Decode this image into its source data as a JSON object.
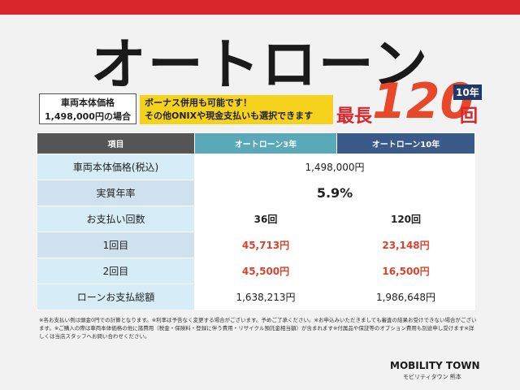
{
  "header": {
    "title": "オートローン"
  },
  "price_box": {
    "line1": "車両本体価格",
    "line2": "1,498,000円の場合"
  },
  "banner": {
    "line1": "ボーナス併用も可能です！",
    "line2": "その他ONIXや現金支払いも選択できます"
  },
  "max_term": {
    "prefix": "最長",
    "number": "120",
    "unit": "回",
    "badge": "10年"
  },
  "table": {
    "columns": [
      "項目",
      "オートローン3年",
      "オートローン10年"
    ],
    "rows": [
      [
        "車両本体価格(税込)",
        "1,498,000円"
      ],
      [
        "実質年率",
        "5.9%"
      ],
      [
        "お支払い回数",
        "36回",
        "120回"
      ],
      [
        "1回目",
        "45,713円",
        "23,148円"
      ],
      [
        "2回目",
        "45,500円",
        "16,500円"
      ],
      [
        "ローンお支払総額",
        "1,638,213円",
        "1,986,648円"
      ]
    ]
  },
  "footnote": "※各お支払い例は頭金0円での計算となります。※利率は予告なく変更する場合がございます。予めご了承ください。※お申込みいただきましても審査の結果お受けできない場合がございます。※ご購入の際は車両本体価格の他に諸費用（税金・保険料・登録に伴う費用・リサイクル預託金相当額）が含まれます※付属品や保証等のオプション費用も別途申し受けます※詳しくは当店スタッフへお問い合わせください。",
  "logo": {
    "name": "MOBILITY TOWN",
    "sub": "モビリティタウン 熊本"
  }
}
